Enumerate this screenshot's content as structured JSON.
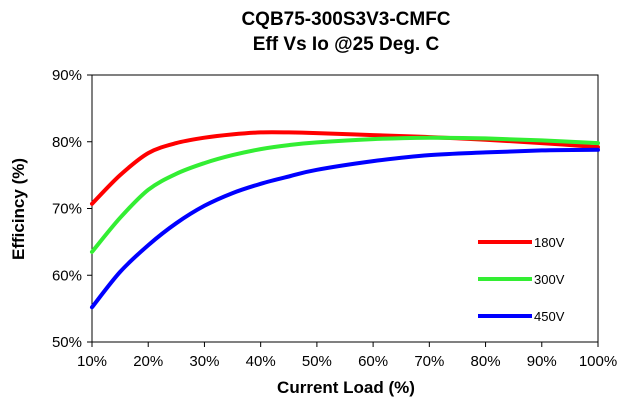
{
  "chart_data": {
    "type": "line",
    "title": "CQB75-300S3V3-CMFC",
    "subtitle": "Eff Vs Io @25 Deg. C",
    "xlabel": "Current Load (%)",
    "ylabel": "Efficincy (%)",
    "xlim": [
      10,
      100
    ],
    "ylim": [
      50,
      90
    ],
    "x_ticks": [
      "10%",
      "20%",
      "30%",
      "40%",
      "50%",
      "60%",
      "70%",
      "80%",
      "90%",
      "100%"
    ],
    "y_ticks": [
      "50%",
      "60%",
      "70%",
      "80%",
      "90%"
    ],
    "grid": false,
    "legend_position": "right",
    "x": [
      10,
      15,
      20,
      25,
      30,
      35,
      40,
      45,
      50,
      60,
      70,
      80,
      90,
      100
    ],
    "series": [
      {
        "name": "180V",
        "color": "#ff0000",
        "values": [
          70.7,
          75.0,
          78.3,
          79.8,
          80.6,
          81.1,
          81.4,
          81.4,
          81.3,
          81.0,
          80.7,
          80.3,
          79.8,
          79.2
        ]
      },
      {
        "name": "300V",
        "color": "#33ee33",
        "values": [
          63.5,
          68.6,
          72.8,
          75.2,
          76.8,
          78.0,
          78.9,
          79.5,
          79.9,
          80.4,
          80.6,
          80.5,
          80.2,
          79.8
        ]
      },
      {
        "name": "450V",
        "color": "#0000ff",
        "values": [
          55.2,
          60.5,
          64.5,
          67.8,
          70.4,
          72.3,
          73.7,
          74.8,
          75.8,
          77.1,
          78.0,
          78.4,
          78.7,
          78.8
        ]
      }
    ]
  }
}
